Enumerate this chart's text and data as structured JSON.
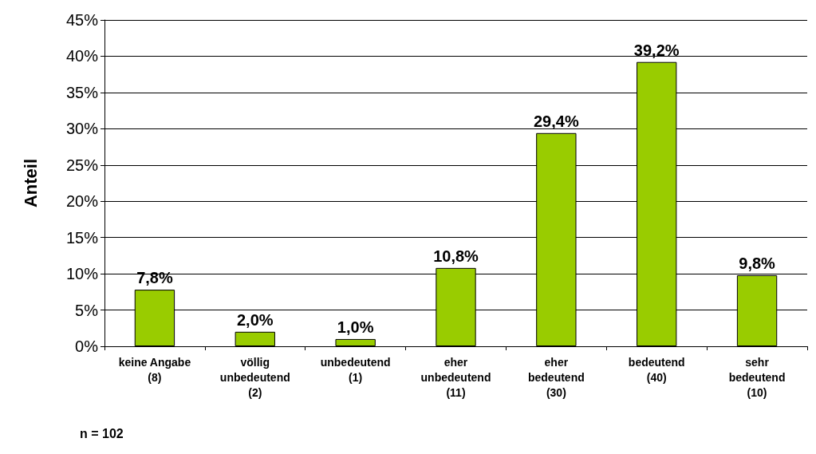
{
  "chart_data": {
    "type": "bar",
    "ylabel": "Anteil",
    "categories": [
      "keine Angabe\n(8)",
      "völlig\nunbedeutend\n(2)",
      "unbedeutend\n(1)",
      "eher\nunbedeutend\n(11)",
      "eher\nbedeutend\n(30)",
      "bedeutend\n(40)",
      "sehr\nbedeutend\n(10)"
    ],
    "values": [
      7.8,
      2.0,
      1.0,
      10.8,
      29.4,
      39.2,
      9.8
    ],
    "value_labels": [
      "7,8%",
      "2,0%",
      "1,0%",
      "10,8%",
      "29,4%",
      "39,2%",
      "9,8%"
    ],
    "color": "#99cc00",
    "ylim": [
      0,
      45
    ],
    "yticks": [
      {
        "value": 0,
        "label": "0%"
      },
      {
        "value": 5,
        "label": "5%"
      },
      {
        "value": 10,
        "label": "10%"
      },
      {
        "value": 15,
        "label": "15%"
      },
      {
        "value": 20,
        "label": "20%"
      },
      {
        "value": 25,
        "label": "25%"
      },
      {
        "value": 30,
        "label": "30%"
      },
      {
        "value": 35,
        "label": "35%"
      },
      {
        "value": 40,
        "label": "40%"
      },
      {
        "value": 45,
        "label": "45%"
      }
    ],
    "grid": "y",
    "annotations": [
      "n = 102"
    ]
  }
}
